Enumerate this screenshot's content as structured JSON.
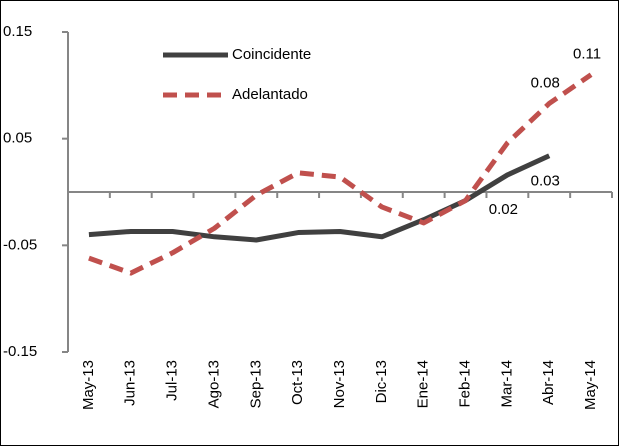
{
  "chart_data": {
    "type": "line",
    "categories": [
      "May-13",
      "Jun-13",
      "Jul-13",
      "Ago-13",
      "Sep-13",
      "Oct-13",
      "Nov-13",
      "Dic-13",
      "Ene-14",
      "Feb-14",
      "Mar-14",
      "Abr-14",
      "May-14"
    ],
    "series": [
      {
        "name": "Coincidente",
        "color": "#404040",
        "dash": false,
        "values": [
          -0.04,
          -0.037,
          -0.037,
          -0.042,
          -0.045,
          -0.038,
          -0.037,
          -0.042,
          -0.026,
          -0.008,
          0.016,
          0.034,
          null
        ],
        "value_labels": [
          null,
          null,
          null,
          null,
          null,
          null,
          null,
          null,
          null,
          null,
          "0.02",
          "0.03",
          null
        ]
      },
      {
        "name": "Adelantado",
        "color": "#c0504d",
        "dash": true,
        "values": [
          -0.062,
          -0.076,
          -0.057,
          -0.034,
          -0.003,
          0.018,
          0.014,
          -0.014,
          -0.029,
          -0.008,
          0.046,
          0.083,
          0.11
        ],
        "value_labels": [
          null,
          null,
          null,
          null,
          null,
          null,
          null,
          null,
          null,
          null,
          null,
          "0.08",
          "0.11"
        ]
      }
    ],
    "ylim": [
      -0.15,
      0.15
    ],
    "yticks": [
      -0.15,
      -0.05,
      0.05,
      0.15
    ],
    "legend": "top-left"
  }
}
